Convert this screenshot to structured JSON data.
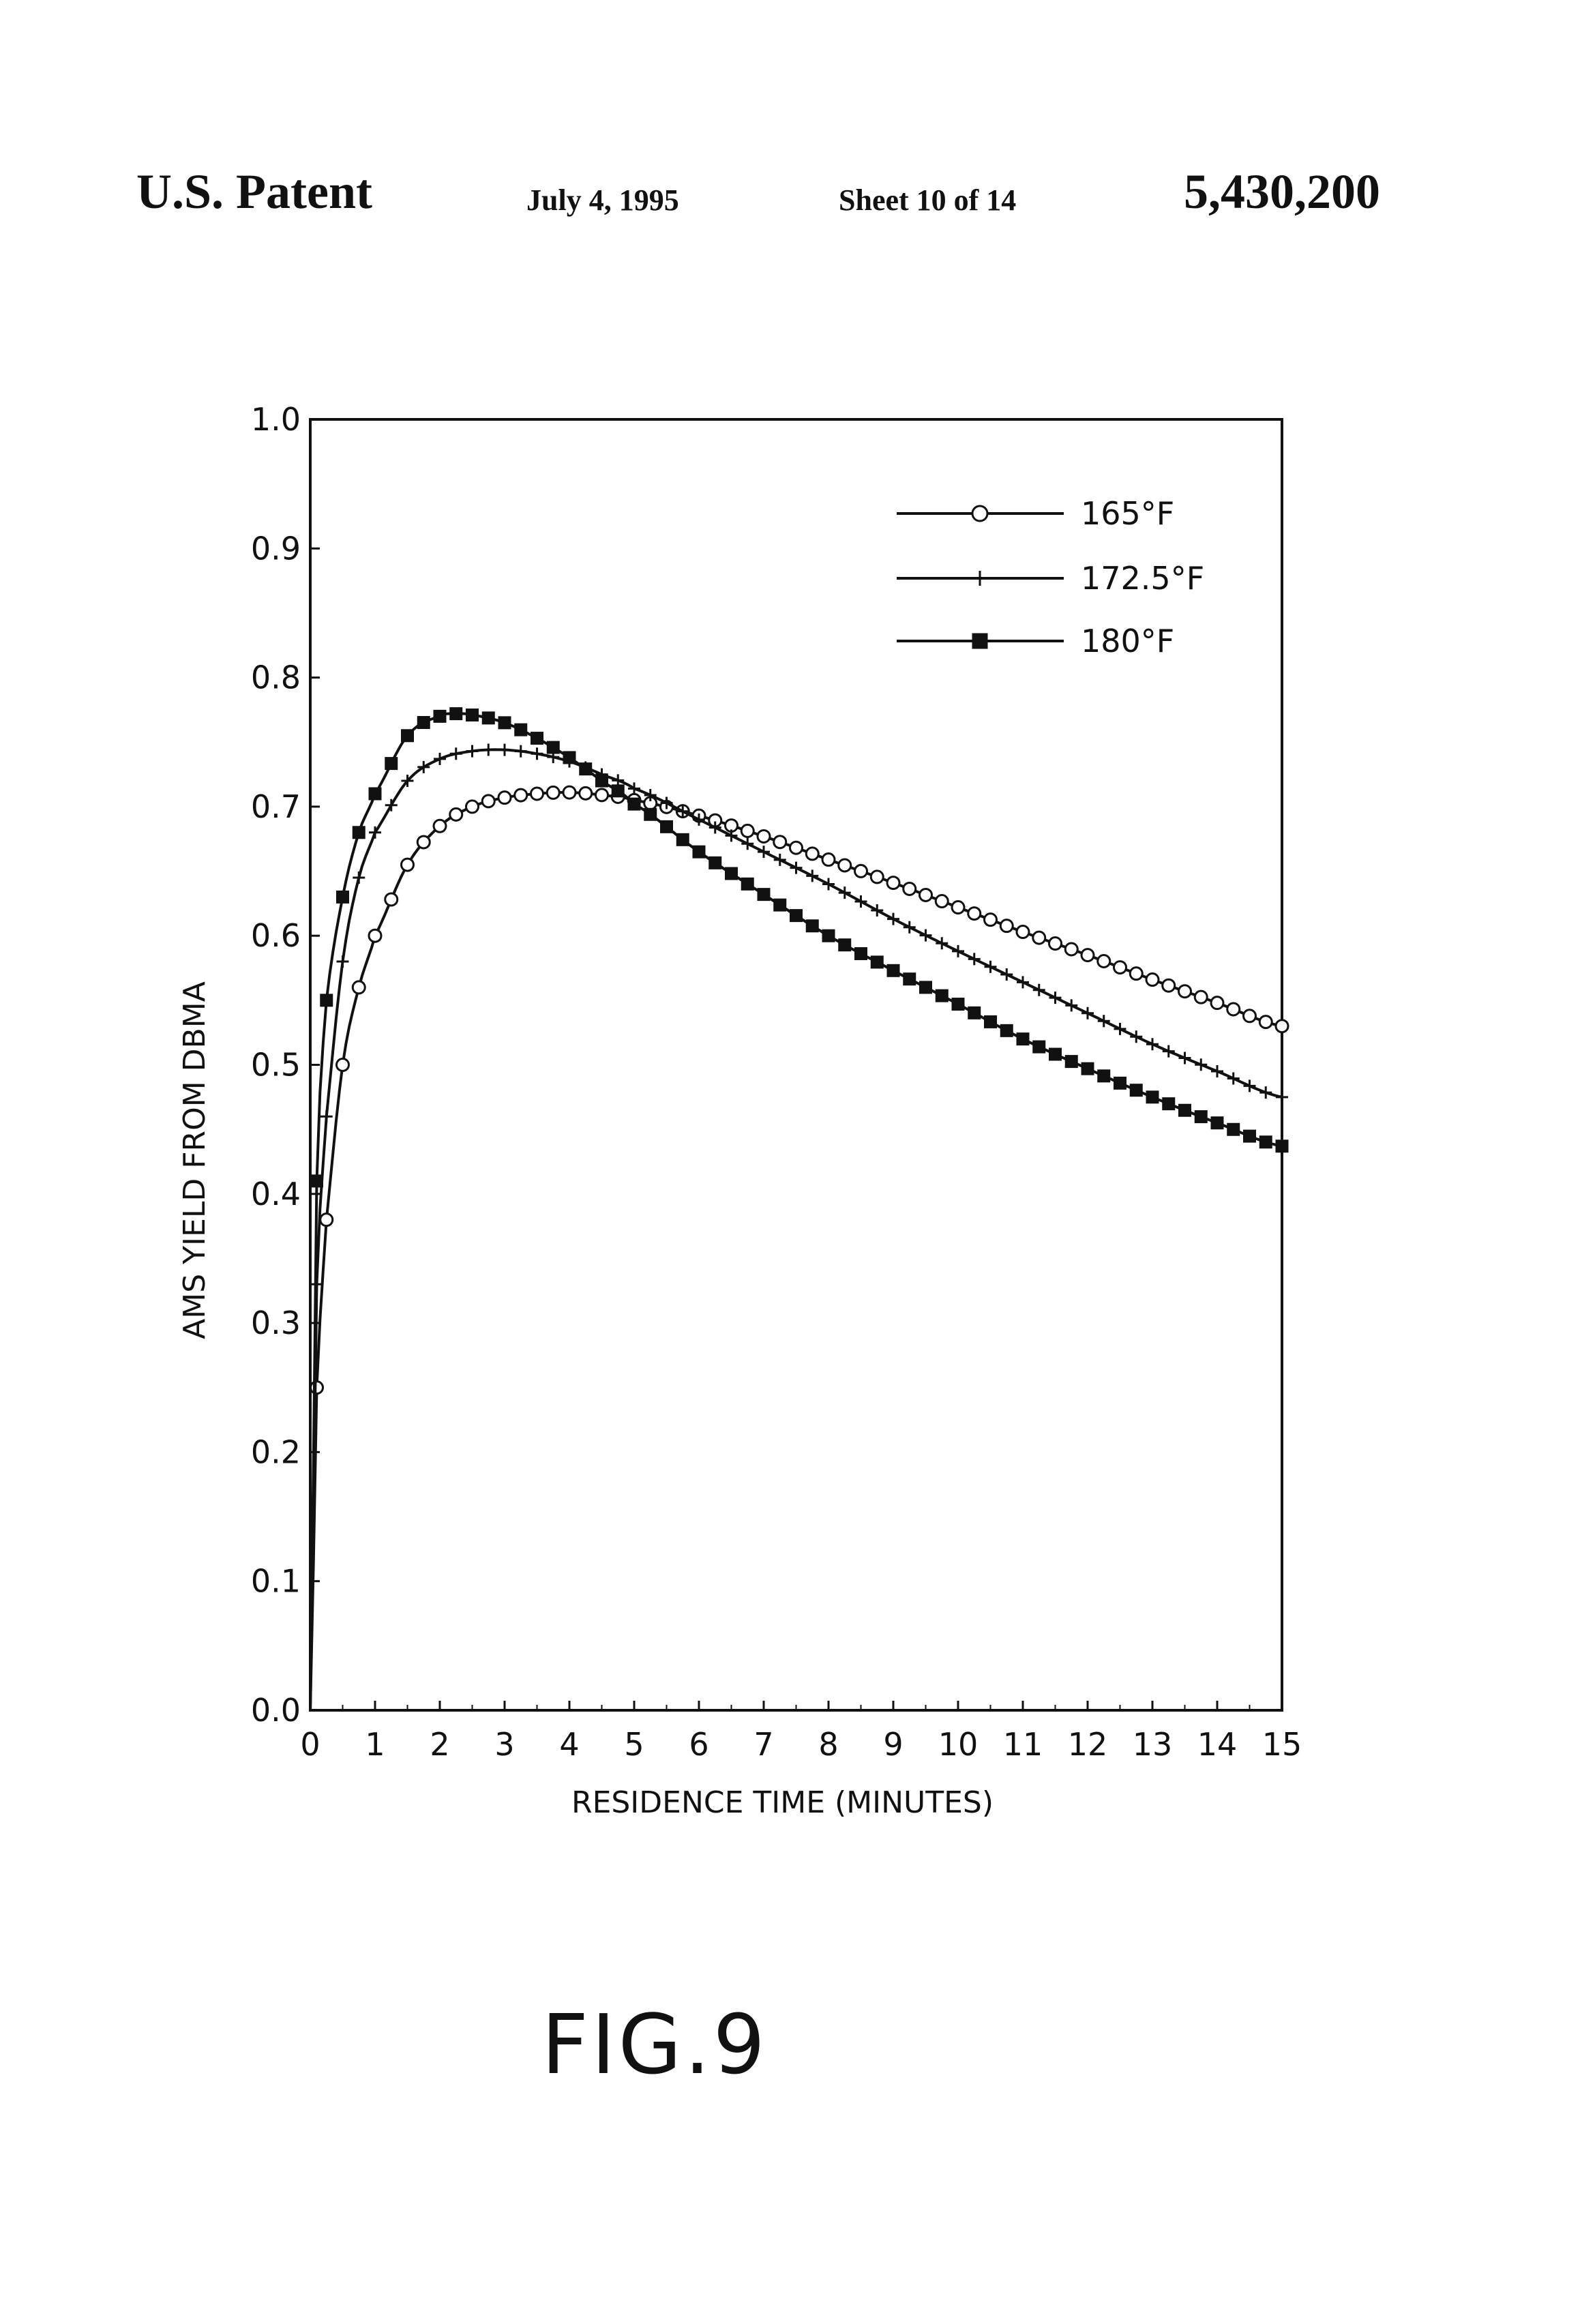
{
  "header": {
    "left": "U.S. Patent",
    "date": "July 4, 1995",
    "sheet": "Sheet 10 of 14",
    "patent_number": "5,430,200"
  },
  "figure_label": "FIG.9",
  "chart_data": {
    "type": "line",
    "title": "",
    "xlabel": "RESIDENCE TIME (MINUTES)",
    "ylabel": "AMS YIELD FROM DBMA",
    "xlim": [
      0,
      15
    ],
    "ylim": [
      0.0,
      1.0
    ],
    "x_ticks": [
      "0",
      "1",
      "2",
      "3",
      "4",
      "5",
      "6",
      "7",
      "8",
      "9",
      "10",
      "11",
      "12",
      "13",
      "14",
      "15"
    ],
    "y_ticks": [
      "0.0",
      "0.1",
      "0.2",
      "0.3",
      "0.4",
      "0.5",
      "0.6",
      "0.7",
      "0.8",
      "0.9",
      "1.0"
    ],
    "grid": false,
    "legend_position": "top-right",
    "series": [
      {
        "name": "165°F",
        "marker": "open-circle",
        "x": [
          0,
          0.1,
          0.25,
          0.5,
          0.75,
          1,
          1.5,
          2,
          2.5,
          3,
          3.5,
          4,
          4.5,
          5,
          6,
          7,
          8,
          9,
          10,
          11,
          12,
          13,
          14,
          15
        ],
        "y": [
          0.0,
          0.25,
          0.38,
          0.5,
          0.56,
          0.6,
          0.655,
          0.685,
          0.7,
          0.707,
          0.71,
          0.711,
          0.709,
          0.705,
          0.693,
          0.677,
          0.659,
          0.641,
          0.622,
          0.603,
          0.585,
          0.566,
          0.548,
          0.53
        ]
      },
      {
        "name": "172.5°F",
        "marker": "plus",
        "x": [
          0,
          0.1,
          0.25,
          0.5,
          0.75,
          1,
          1.5,
          2,
          2.5,
          3,
          3.5,
          4,
          4.5,
          5,
          6,
          7,
          8,
          9,
          10,
          11,
          12,
          13,
          14,
          15
        ],
        "y": [
          0.0,
          0.33,
          0.46,
          0.58,
          0.645,
          0.68,
          0.72,
          0.737,
          0.743,
          0.744,
          0.741,
          0.735,
          0.725,
          0.714,
          0.69,
          0.665,
          0.64,
          0.613,
          0.588,
          0.564,
          0.54,
          0.516,
          0.495,
          0.475
        ]
      },
      {
        "name": "180°F",
        "marker": "filled-square",
        "x": [
          0,
          0.1,
          0.25,
          0.5,
          0.75,
          1,
          1.5,
          2,
          2.25,
          2.5,
          3,
          3.5,
          4,
          4.5,
          5,
          6,
          7,
          8,
          9,
          10,
          11,
          12,
          13,
          14,
          15
        ],
        "y": [
          0.0,
          0.41,
          0.55,
          0.63,
          0.68,
          0.71,
          0.755,
          0.77,
          0.772,
          0.771,
          0.765,
          0.753,
          0.738,
          0.72,
          0.702,
          0.665,
          0.632,
          0.6,
          0.573,
          0.547,
          0.52,
          0.497,
          0.475,
          0.455,
          0.437
        ]
      }
    ]
  }
}
